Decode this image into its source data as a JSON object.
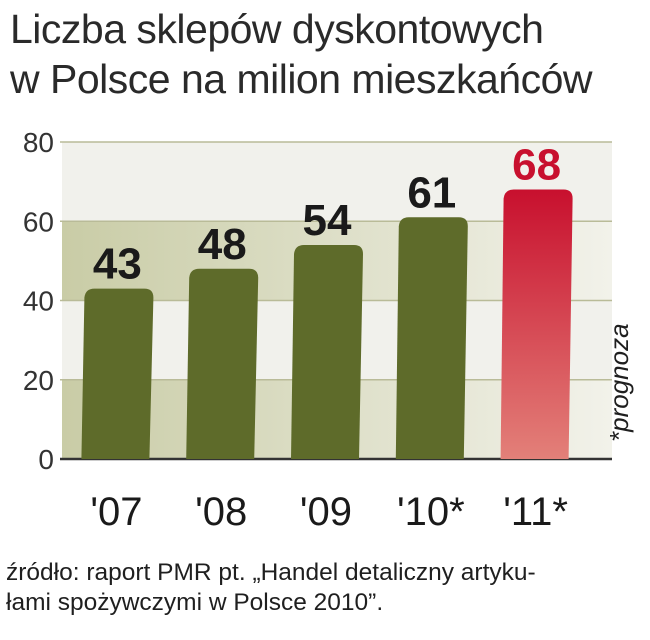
{
  "title_lines": [
    "Liczba sklepów dyskontowych",
    "w Polsce na milion mieszkańców"
  ],
  "source_lines": [
    "źródło: raport PMR pt. „Handel detaliczny artyku-",
    "łami spożywczymi w Polsce 2010”."
  ],
  "chart_data": {
    "type": "bar",
    "title": "Liczba sklepów dyskontowych w Polsce na milion mieszkańców",
    "categories": [
      "'07",
      "'08",
      "'09",
      "'10*",
      "'11*"
    ],
    "values": [
      43,
      48,
      54,
      61,
      68
    ],
    "value_labels": [
      "43",
      "48",
      "54",
      "61",
      "68"
    ],
    "forecast": [
      false,
      false,
      false,
      false,
      true
    ],
    "ylim": [
      0,
      80
    ],
    "yticks": [
      0,
      20,
      40,
      60,
      80
    ],
    "annotation": "*prognoza",
    "colors": {
      "bar": "#5e6b2a",
      "bar_forecast_top": "#c8102e",
      "bar_forecast_bottom": "#e38079",
      "highlight_text": "#c8102e",
      "band_dark": "#c9cca6",
      "band_light": "#f2f2ea",
      "grid": "#b9bb98",
      "label": "#1a1a1a"
    }
  }
}
